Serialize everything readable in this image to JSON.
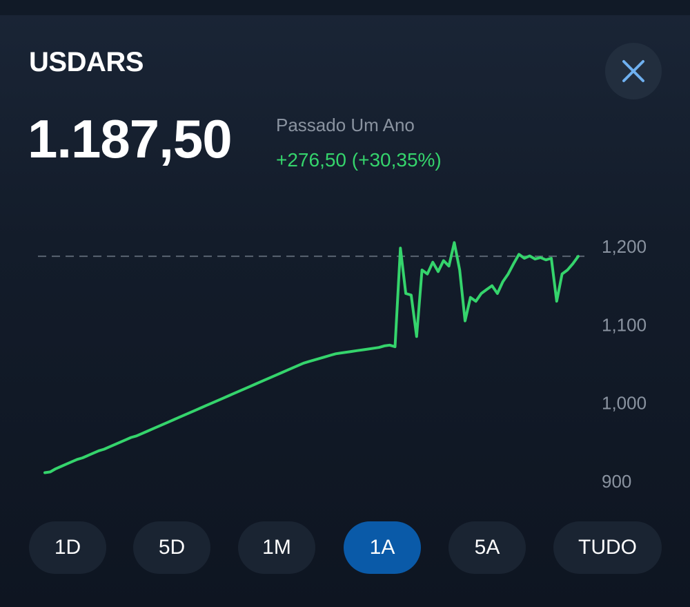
{
  "header": {
    "ticker": "USDARS",
    "close_icon": "close-icon"
  },
  "quote": {
    "price": "1.187,50",
    "period_label": "Passado Um Ano",
    "change": "+276,50 (+30,35%)"
  },
  "colors": {
    "line": "#35d46c",
    "change": "#35d46c",
    "active_range": "#0a5aa8",
    "muted": "#8a93a0"
  },
  "range_selector": {
    "options": [
      "1D",
      "5D",
      "1M",
      "1A",
      "5A",
      "TUDO"
    ],
    "selected": "1A"
  },
  "chart_data": {
    "type": "line",
    "title": "",
    "xlabel": "",
    "ylabel": "",
    "ylim": [
      870,
      1220
    ],
    "y_ticks": [
      1200,
      1100,
      1000,
      900
    ],
    "y_tick_labels": [
      "1,200",
      "1,100",
      "1,000",
      "900"
    ],
    "reference_line": 1187.5,
    "grid": false,
    "series": [
      {
        "values": [
          911,
          912,
          916,
          919,
          922,
          925,
          928,
          930,
          933,
          936,
          939,
          941,
          944,
          947,
          950,
          953,
          956,
          958,
          961,
          964,
          967,
          970,
          973,
          976,
          979,
          982,
          985,
          988,
          991,
          994,
          997,
          1000,
          1003,
          1006,
          1009,
          1012,
          1015,
          1018,
          1021,
          1024,
          1027,
          1030,
          1033,
          1036,
          1039,
          1042,
          1045,
          1048,
          1051,
          1053,
          1055,
          1057,
          1059,
          1061,
          1063,
          1064,
          1065,
          1066,
          1067,
          1068,
          1069,
          1070,
          1071,
          1073,
          1074,
          1072,
          1198,
          1140,
          1138,
          1085,
          1170,
          1165,
          1180,
          1168,
          1182,
          1175,
          1205,
          1170,
          1105,
          1135,
          1130,
          1140,
          1145,
          1150,
          1140,
          1155,
          1165,
          1178,
          1190,
          1185,
          1188,
          1184,
          1186,
          1183,
          1185,
          1130,
          1165,
          1170,
          1178,
          1187.5
        ]
      }
    ]
  }
}
